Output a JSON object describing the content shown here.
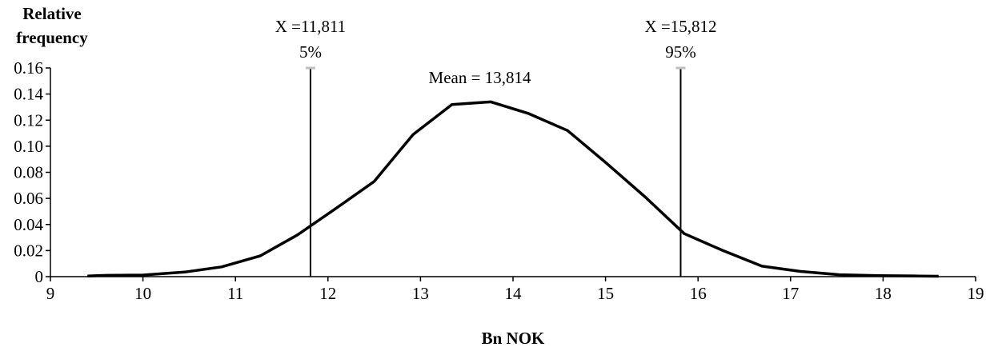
{
  "chart_data": {
    "type": "line",
    "title": "",
    "xlabel": "Bn NOK",
    "ylabel_line1": "Relative",
    "ylabel_line2": "frequency",
    "xlim": [
      9,
      19
    ],
    "ylim": [
      0,
      0.16
    ],
    "x_ticks": [
      9,
      10,
      11,
      12,
      13,
      14,
      15,
      16,
      17,
      18,
      19
    ],
    "y_tick_values": [
      0,
      0.02,
      0.04,
      0.06,
      0.08,
      0.1,
      0.12,
      0.14,
      0.16
    ],
    "y_tick_labels": [
      "0",
      "0.02",
      "0.04",
      "0.06",
      "0.08",
      "0.10",
      "0.12",
      "0.14",
      "0.16"
    ],
    "grid": false,
    "series": [
      {
        "x": [
          9.4,
          9.6,
          10.0,
          10.45,
          10.85,
          11.27,
          11.67,
          12.08,
          12.5,
          12.92,
          13.34,
          13.76,
          14.17,
          14.59,
          15.01,
          15.43,
          15.85,
          16.27,
          16.69,
          17.11,
          17.53,
          17.95,
          18.37,
          18.6
        ],
        "y": [
          0.0005,
          0.001,
          0.0012,
          0.0035,
          0.0075,
          0.016,
          0.032,
          0.052,
          0.073,
          0.109,
          0.132,
          0.134,
          0.125,
          0.112,
          0.087,
          0.061,
          0.033,
          0.02,
          0.008,
          0.004,
          0.0015,
          0.0008,
          0.0005,
          0.0003
        ]
      }
    ],
    "markers": [
      {
        "x": 11.811,
        "label_line1": "X =11,811",
        "label_line2": "5%"
      },
      {
        "x": 15.812,
        "label_line1": "X =15,812",
        "label_line2": "95%"
      }
    ],
    "annotation": {
      "text": "Mean = 13,814",
      "x": 13.814
    },
    "colors": {
      "line": "#000000",
      "marker_cap": "#c0c0c0",
      "axis": "#000000"
    }
  }
}
